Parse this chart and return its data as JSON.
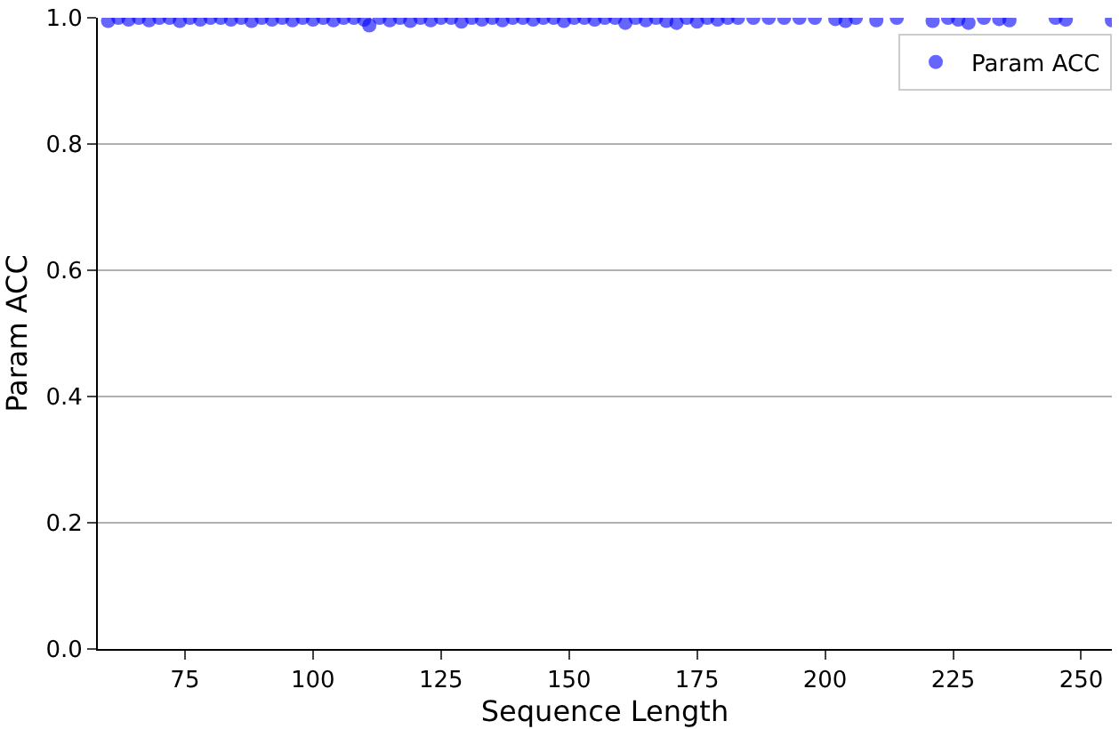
{
  "chart_data": {
    "type": "scatter",
    "xlabel": "Sequence Length",
    "ylabel": "Param ACC",
    "x": [
      60,
      62,
      64,
      66,
      68,
      70,
      72,
      74,
      76,
      78,
      80,
      82,
      84,
      86,
      88,
      90,
      92,
      94,
      96,
      98,
      100,
      102,
      104,
      106,
      108,
      110,
      111,
      113,
      115,
      117,
      119,
      121,
      123,
      125,
      127,
      129,
      131,
      133,
      135,
      137,
      139,
      141,
      143,
      145,
      147,
      149,
      151,
      153,
      155,
      157,
      159,
      161,
      163,
      165,
      167,
      169,
      171,
      173,
      175,
      177,
      179,
      181,
      183,
      186,
      189,
      192,
      195,
      198,
      202,
      204,
      206,
      210,
      214,
      221,
      224,
      226,
      228,
      231,
      234,
      236,
      245,
      247,
      256
    ],
    "series": [
      {
        "name": "Param ACC",
        "color": "#0000ff",
        "values": [
          0.995,
          1,
          0.997,
          1,
          0.996,
          1,
          1,
          0.995,
          1,
          0.997,
          1,
          1,
          0.997,
          1,
          0.995,
          1,
          0.997,
          1,
          0.996,
          1,
          0.997,
          1,
          0.996,
          1,
          1,
          0.997,
          0.988,
          1,
          0.996,
          1,
          0.995,
          1,
          0.996,
          1,
          1,
          0.994,
          1,
          0.997,
          1,
          0.996,
          1,
          1,
          0.997,
          1,
          1,
          0.995,
          1,
          1,
          0.997,
          1,
          1,
          0.992,
          1,
          0.996,
          1,
          0.995,
          0.992,
          1,
          0.994,
          1,
          0.997,
          1,
          1,
          1,
          1,
          1,
          1,
          1,
          0.998,
          0.995,
          1,
          0.996,
          1,
          0.995,
          1,
          0.997,
          0.992,
          1,
          0.998,
          0.996,
          1,
          0.997,
          0.996
        ]
      }
    ],
    "xlim": [
      58,
      256
    ],
    "xticks": [
      75,
      100,
      125,
      150,
      175,
      200,
      225,
      250
    ],
    "ylim": [
      0,
      1
    ],
    "yticks": [
      {
        "value": 0,
        "label": "0.0"
      },
      {
        "value": 0.2,
        "label": "0.2"
      },
      {
        "value": 0.4,
        "label": "0.4"
      },
      {
        "value": 0.6,
        "label": "0.6"
      },
      {
        "value": 0.8,
        "label": "0.8"
      },
      {
        "value": 1,
        "label": "1.0"
      }
    ],
    "grid": "y",
    "legend": "top right",
    "marker": "circle"
  }
}
